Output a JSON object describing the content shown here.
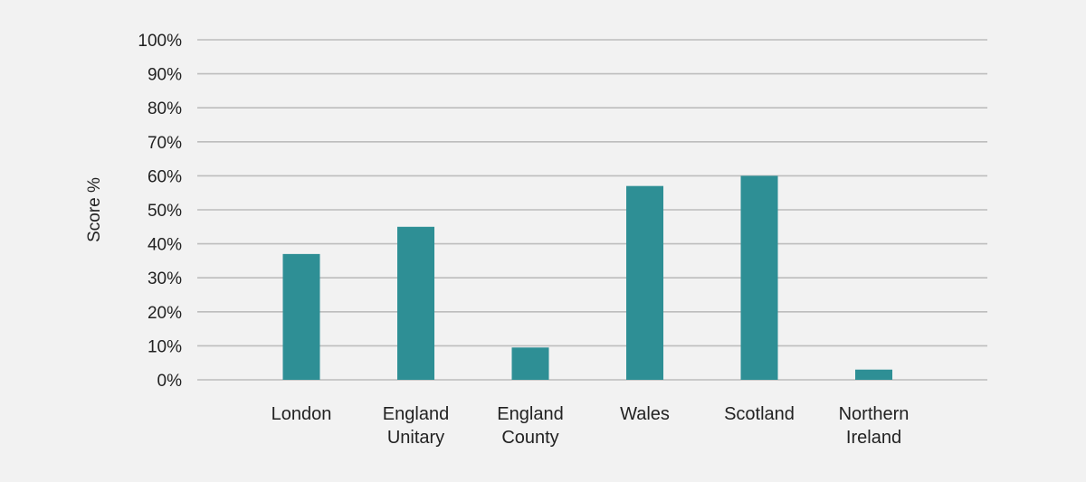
{
  "colors": {
    "background": "#f2f2f2",
    "bar": "#2e8f95",
    "grid": "#bdbdbd",
    "text": "#222222"
  },
  "chart_data": {
    "type": "bar",
    "title": "",
    "xlabel": "",
    "ylabel": "Score %",
    "ylim": [
      0,
      100
    ],
    "y_ticks": [
      0,
      10,
      20,
      30,
      40,
      50,
      60,
      70,
      80,
      90,
      100
    ],
    "y_tick_labels": [
      "0%",
      "10%",
      "20%",
      "30%",
      "40%",
      "50%",
      "60%",
      "70%",
      "80%",
      "90%",
      "100%"
    ],
    "grid": true,
    "legend": "none",
    "categories": [
      [
        "London"
      ],
      [
        "England",
        "Unitary"
      ],
      [
        "England",
        "County"
      ],
      [
        "Wales"
      ],
      [
        "Scotland"
      ],
      [
        "Northern",
        "Ireland"
      ]
    ],
    "values": [
      37,
      45,
      9.5,
      57,
      60,
      3
    ]
  }
}
